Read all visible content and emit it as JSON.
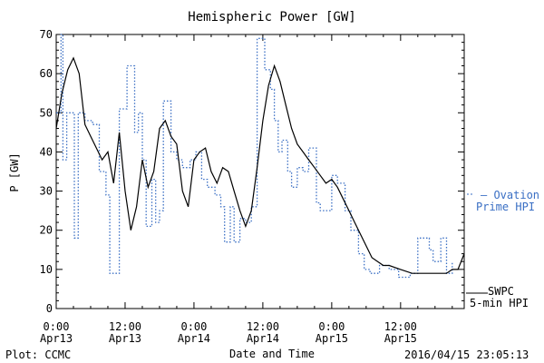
{
  "chart_data": {
    "type": "line",
    "title": "Hemispheric Power [GW]",
    "ylabel": "P [GW]",
    "xlabel": "Date and Time",
    "xlim": [
      "2016-04-13T00:00",
      "2016-04-15T23:05"
    ],
    "ylim": [
      0,
      70
    ],
    "y_ticks": [
      0,
      10,
      20,
      30,
      40,
      50,
      60,
      70
    ],
    "x_ticks": [
      {
        "t": "2016-04-13T00:00",
        "time": "0:00",
        "date": "Apr13"
      },
      {
        "t": "2016-04-13T12:00",
        "time": "12:00",
        "date": "Apr13"
      },
      {
        "t": "2016-04-14T00:00",
        "time": "0:00",
        "date": "Apr14"
      },
      {
        "t": "2016-04-14T12:00",
        "time": "12:00",
        "date": "Apr14"
      },
      {
        "t": "2016-04-15T00:00",
        "time": "0:00",
        "date": "Apr15"
      },
      {
        "t": "2016-04-15T12:00",
        "time": "12:00",
        "date": "Apr15"
      }
    ],
    "grid": false,
    "legend_position": "right",
    "series": [
      {
        "name": "SWPC 5-min HPI",
        "style": "solid",
        "color": "#000000",
        "points": [
          [
            "2016-04-13T00:00",
            46
          ],
          [
            "2016-04-13T01:00",
            55
          ],
          [
            "2016-04-13T02:00",
            61
          ],
          [
            "2016-04-13T03:00",
            64
          ],
          [
            "2016-04-13T04:00",
            60
          ],
          [
            "2016-04-13T05:00",
            47
          ],
          [
            "2016-04-13T06:00",
            44
          ],
          [
            "2016-04-13T07:00",
            41
          ],
          [
            "2016-04-13T08:00",
            38
          ],
          [
            "2016-04-13T09:00",
            40
          ],
          [
            "2016-04-13T10:00",
            32
          ],
          [
            "2016-04-13T11:00",
            45
          ],
          [
            "2016-04-13T12:00",
            30
          ],
          [
            "2016-04-13T13:00",
            20
          ],
          [
            "2016-04-13T14:00",
            26
          ],
          [
            "2016-04-13T15:00",
            38
          ],
          [
            "2016-04-13T16:00",
            31
          ],
          [
            "2016-04-13T17:00",
            35
          ],
          [
            "2016-04-13T18:00",
            46
          ],
          [
            "2016-04-13T19:00",
            48
          ],
          [
            "2016-04-13T20:00",
            44
          ],
          [
            "2016-04-13T21:00",
            42
          ],
          [
            "2016-04-13T22:00",
            30
          ],
          [
            "2016-04-13T23:00",
            26
          ],
          [
            "2016-04-14T00:00",
            38
          ],
          [
            "2016-04-14T01:00",
            40
          ],
          [
            "2016-04-14T02:00",
            41
          ],
          [
            "2016-04-14T03:00",
            35
          ],
          [
            "2016-04-14T04:00",
            32
          ],
          [
            "2016-04-14T05:00",
            36
          ],
          [
            "2016-04-14T06:00",
            35
          ],
          [
            "2016-04-14T07:00",
            30
          ],
          [
            "2016-04-14T08:00",
            25
          ],
          [
            "2016-04-14T09:00",
            21
          ],
          [
            "2016-04-14T10:00",
            25
          ],
          [
            "2016-04-14T11:00",
            36
          ],
          [
            "2016-04-14T12:00",
            48
          ],
          [
            "2016-04-14T13:00",
            57
          ],
          [
            "2016-04-14T14:00",
            62
          ],
          [
            "2016-04-14T15:00",
            58
          ],
          [
            "2016-04-14T16:00",
            52
          ],
          [
            "2016-04-14T17:00",
            46
          ],
          [
            "2016-04-14T18:00",
            42
          ],
          [
            "2016-04-14T19:00",
            40
          ],
          [
            "2016-04-14T20:00",
            38
          ],
          [
            "2016-04-14T21:00",
            36
          ],
          [
            "2016-04-14T22:00",
            34
          ],
          [
            "2016-04-14T23:00",
            32
          ],
          [
            "2016-04-15T00:00",
            33
          ],
          [
            "2016-04-15T01:00",
            31
          ],
          [
            "2016-04-15T02:00",
            28
          ],
          [
            "2016-04-15T03:00",
            25
          ],
          [
            "2016-04-15T04:00",
            22
          ],
          [
            "2016-04-15T05:00",
            19
          ],
          [
            "2016-04-15T06:00",
            16
          ],
          [
            "2016-04-15T07:00",
            13
          ],
          [
            "2016-04-15T08:00",
            12
          ],
          [
            "2016-04-15T09:00",
            11
          ],
          [
            "2016-04-15T10:00",
            11
          ],
          [
            "2016-04-15T12:00",
            10
          ],
          [
            "2016-04-15T14:00",
            9
          ],
          [
            "2016-04-15T16:00",
            9
          ],
          [
            "2016-04-15T18:00",
            9
          ],
          [
            "2016-04-15T20:00",
            9
          ],
          [
            "2016-04-15T21:00",
            10
          ],
          [
            "2016-04-15T22:00",
            10
          ],
          [
            "2016-04-15T23:05",
            14
          ]
        ]
      },
      {
        "name": "Ovation Prime HPI",
        "style": "dotted",
        "color": "#3a6fc4",
        "points": [
          [
            "2016-04-13T00:00",
            50
          ],
          [
            "2016-04-13T00:50",
            70
          ],
          [
            "2016-04-13T01:10",
            38
          ],
          [
            "2016-04-13T01:50",
            50
          ],
          [
            "2016-04-13T03:10",
            18
          ],
          [
            "2016-04-13T03:50",
            50
          ],
          [
            "2016-04-13T05:00",
            48
          ],
          [
            "2016-04-13T06:20",
            47
          ],
          [
            "2016-04-13T07:30",
            35
          ],
          [
            "2016-04-13T08:40",
            29
          ],
          [
            "2016-04-13T09:20",
            9
          ],
          [
            "2016-04-13T11:00",
            51
          ],
          [
            "2016-04-13T12:20",
            62
          ],
          [
            "2016-04-13T13:40",
            45
          ],
          [
            "2016-04-13T14:20",
            50
          ],
          [
            "2016-04-13T15:00",
            38
          ],
          [
            "2016-04-13T15:40",
            21
          ],
          [
            "2016-04-13T16:40",
            33
          ],
          [
            "2016-04-13T17:20",
            22
          ],
          [
            "2016-04-13T18:00",
            25
          ],
          [
            "2016-04-13T18:40",
            53
          ],
          [
            "2016-04-13T20:00",
            40
          ],
          [
            "2016-04-13T21:00",
            38
          ],
          [
            "2016-04-13T22:00",
            36
          ],
          [
            "2016-04-13T23:20",
            38
          ],
          [
            "2016-04-14T00:20",
            40
          ],
          [
            "2016-04-14T01:20",
            33
          ],
          [
            "2016-04-14T02:20",
            31
          ],
          [
            "2016-04-14T03:40",
            29
          ],
          [
            "2016-04-14T04:40",
            26
          ],
          [
            "2016-04-14T05:20",
            17
          ],
          [
            "2016-04-14T06:20",
            26
          ],
          [
            "2016-04-14T07:00",
            17
          ],
          [
            "2016-04-14T08:00",
            23
          ],
          [
            "2016-04-14T09:00",
            22
          ],
          [
            "2016-04-14T10:00",
            26
          ],
          [
            "2016-04-14T11:00",
            69
          ],
          [
            "2016-04-14T12:20",
            61
          ],
          [
            "2016-04-14T13:20",
            56
          ],
          [
            "2016-04-14T14:00",
            48
          ],
          [
            "2016-04-14T14:40",
            40
          ],
          [
            "2016-04-14T15:20",
            43
          ],
          [
            "2016-04-14T16:20",
            35
          ],
          [
            "2016-04-14T17:00",
            31
          ],
          [
            "2016-04-14T18:00",
            36
          ],
          [
            "2016-04-14T19:00",
            35
          ],
          [
            "2016-04-14T20:00",
            41
          ],
          [
            "2016-04-14T21:20",
            27
          ],
          [
            "2016-04-14T22:00",
            25
          ],
          [
            "2016-04-15T00:00",
            34
          ],
          [
            "2016-04-15T01:00",
            32
          ],
          [
            "2016-04-15T02:20",
            25
          ],
          [
            "2016-04-15T03:20",
            20
          ],
          [
            "2016-04-15T04:40",
            14
          ],
          [
            "2016-04-15T05:40",
            10
          ],
          [
            "2016-04-15T06:40",
            9
          ],
          [
            "2016-04-15T08:20",
            11
          ],
          [
            "2016-04-15T10:00",
            10
          ],
          [
            "2016-04-15T11:40",
            8
          ],
          [
            "2016-04-15T13:40",
            9
          ],
          [
            "2016-04-15T15:00",
            18
          ],
          [
            "2016-04-15T17:00",
            15
          ],
          [
            "2016-04-15T17:40",
            12
          ],
          [
            "2016-04-15T19:00",
            18
          ],
          [
            "2016-04-15T20:00",
            9
          ],
          [
            "2016-04-15T21:00",
            12
          ]
        ]
      }
    ]
  },
  "legend": {
    "ovation_line1": "Ovation",
    "ovation_line2": "Prime HPI",
    "swpc_line1": "SWPC",
    "swpc_line2": "5-min HPI"
  },
  "footer": {
    "plot_credit": "Plot: CCMC",
    "timestamp": "2016/04/15 23:05:13"
  }
}
